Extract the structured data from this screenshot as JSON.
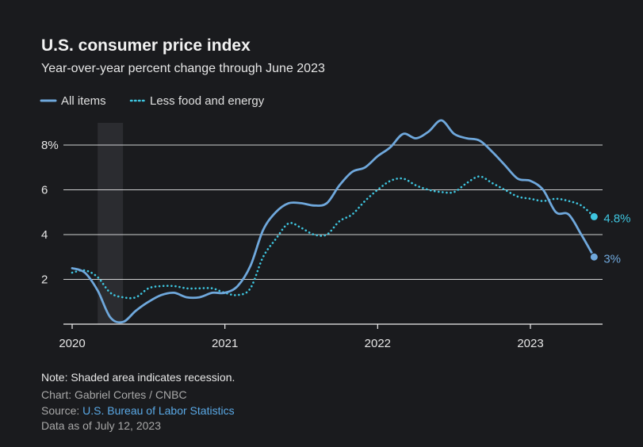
{
  "header": {
    "title": "U.S. consumer price index",
    "subtitle": "Year-over-year percent change through June 2023"
  },
  "colors": {
    "background": "#1a1b1e",
    "all_items": "#6fa8dc",
    "core": "#3ec6e0",
    "recession": "#2b2c30",
    "grid": "#f0f0f0"
  },
  "chart_data": {
    "type": "line",
    "title": "U.S. consumer price index",
    "ylabel": "Year-over-year percent change",
    "xlabel": "",
    "x_unit": "year",
    "ylim": [
      0,
      9.8
    ],
    "xlim": [
      2020.0,
      2023.5
    ],
    "yticks": [
      2,
      4,
      6,
      8
    ],
    "ytick_labels": [
      "2",
      "4",
      "6",
      "8%"
    ],
    "xticks": [
      2020,
      2021,
      2022,
      2023
    ],
    "xtick_labels": [
      "2020",
      "2021",
      "2022",
      "2023"
    ],
    "recession": {
      "start": 2020.167,
      "end": 2020.333,
      "label": "recession"
    },
    "legend": {
      "position": "top-left"
    },
    "series": [
      {
        "name": "All items",
        "style": "solid",
        "end_label": "3%",
        "x": [
          2020.0,
          2020.083,
          2020.167,
          2020.25,
          2020.333,
          2020.417,
          2020.5,
          2020.583,
          2020.667,
          2020.75,
          2020.833,
          2020.917,
          2021.0,
          2021.083,
          2021.167,
          2021.25,
          2021.333,
          2021.417,
          2021.5,
          2021.583,
          2021.667,
          2021.75,
          2021.833,
          2021.917,
          2022.0,
          2022.083,
          2022.167,
          2022.25,
          2022.333,
          2022.417,
          2022.5,
          2022.583,
          2022.667,
          2022.75,
          2022.833,
          2022.917,
          2023.0,
          2023.083,
          2023.167,
          2023.25,
          2023.333,
          2023.417
        ],
        "values": [
          2.5,
          2.3,
          1.5,
          0.3,
          0.1,
          0.6,
          1.0,
          1.3,
          1.4,
          1.2,
          1.2,
          1.4,
          1.4,
          1.7,
          2.6,
          4.2,
          5.0,
          5.4,
          5.4,
          5.3,
          5.4,
          6.2,
          6.8,
          7.0,
          7.5,
          7.9,
          8.5,
          8.3,
          8.6,
          9.1,
          8.5,
          8.3,
          8.2,
          7.7,
          7.1,
          6.5,
          6.4,
          6.0,
          5.0,
          4.9,
          4.0,
          3.0
        ]
      },
      {
        "name": "Less food and energy",
        "style": "dotted",
        "end_label": "4.8%",
        "x": [
          2020.0,
          2020.083,
          2020.167,
          2020.25,
          2020.333,
          2020.417,
          2020.5,
          2020.583,
          2020.667,
          2020.75,
          2020.833,
          2020.917,
          2021.0,
          2021.083,
          2021.167,
          2021.25,
          2021.333,
          2021.417,
          2021.5,
          2021.583,
          2021.667,
          2021.75,
          2021.833,
          2021.917,
          2022.0,
          2022.083,
          2022.167,
          2022.25,
          2022.333,
          2022.417,
          2022.5,
          2022.583,
          2022.667,
          2022.75,
          2022.833,
          2022.917,
          2023.0,
          2023.083,
          2023.167,
          2023.25,
          2023.333,
          2023.417
        ],
        "values": [
          2.3,
          2.4,
          2.1,
          1.4,
          1.2,
          1.2,
          1.6,
          1.7,
          1.7,
          1.6,
          1.6,
          1.6,
          1.4,
          1.3,
          1.6,
          3.0,
          3.8,
          4.5,
          4.3,
          4.0,
          4.0,
          4.6,
          4.9,
          5.5,
          6.0,
          6.4,
          6.5,
          6.2,
          6.0,
          5.9,
          5.9,
          6.3,
          6.6,
          6.3,
          6.0,
          5.7,
          5.6,
          5.5,
          5.6,
          5.5,
          5.3,
          4.8
        ]
      }
    ]
  },
  "footer": {
    "note": "Note: Shaded area indicates recession.",
    "chart_credit": "Chart: Gabriel Cortes / CNBC",
    "source_prefix": "Source: ",
    "source_link": "U.S. Bureau of Labor Statistics",
    "data_as_of": "Data as of July 12, 2023"
  }
}
